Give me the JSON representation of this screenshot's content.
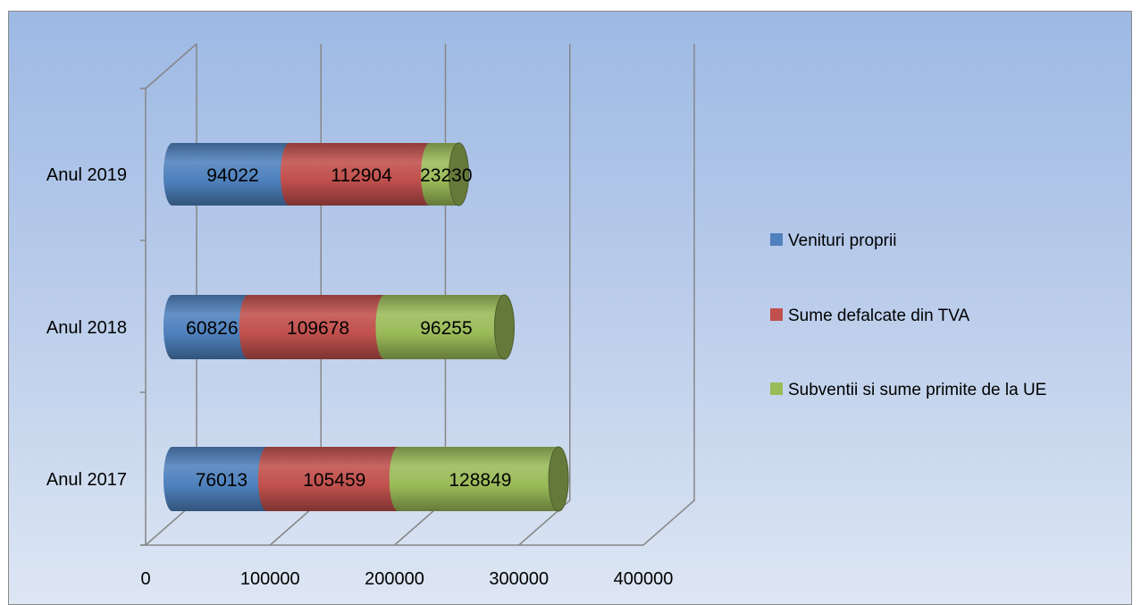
{
  "chart_data": {
    "type": "bar",
    "orientation": "horizontal",
    "stacked": true,
    "style": "3d-cylinder",
    "title": "",
    "xlabel": "",
    "ylabel": "",
    "categories": [
      "Anul 2017",
      "Anul 2018",
      "Anul 2019"
    ],
    "series": [
      {
        "name": "Venituri proprii",
        "color": "#4f81bd",
        "values": [
          76013,
          60826,
          94022
        ]
      },
      {
        "name": "Sume defalcate din TVA",
        "color": "#c0504d",
        "values": [
          105459,
          109678,
          112904
        ]
      },
      {
        "name": "Subventii si sume primite de la UE",
        "color": "#9bbb59",
        "values": [
          128849,
          96255,
          23230
        ]
      }
    ],
    "xlim": [
      0,
      400000
    ],
    "xticks": [
      "0",
      "100000",
      "200000",
      "300000",
      "400000"
    ],
    "grid": true,
    "legend_position": "right",
    "data_labels": true
  }
}
